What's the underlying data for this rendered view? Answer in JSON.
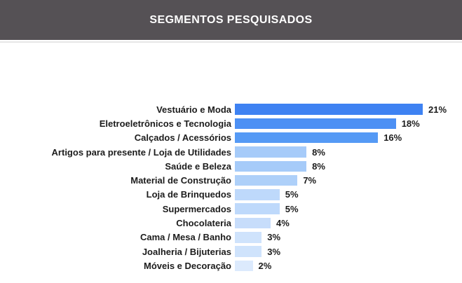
{
  "header": {
    "title": "SEGMENTOS PESQUISADOS",
    "background_color": "#555155",
    "text_color": "#ffffff"
  },
  "chart_data": {
    "type": "bar",
    "orientation": "horizontal",
    "title": "SEGMENTOS PESQUISADOS",
    "xlabel": "",
    "ylabel": "",
    "xlim": [
      0,
      21
    ],
    "grid": false,
    "legend": false,
    "value_label_position": "end-of-bar",
    "value_suffix": "%",
    "categories": [
      "Vestuário e Moda",
      "Eletroeletrônicos e Tecnologia",
      "Calçados / Acessórios",
      "Artigos para presente / Loja de Utilidades",
      "Saúde e Beleza",
      "Material de Construção",
      "Loja de Brinquedos",
      "Supermercados",
      "Chocolateria",
      "Cama / Mesa / Banho",
      "Joalheria / Bijuterias",
      "Móveis e Decoração"
    ],
    "values": [
      21,
      18,
      16,
      8,
      8,
      7,
      5,
      5,
      4,
      3,
      3,
      2
    ],
    "value_labels": [
      "21%",
      "18%",
      "16%",
      "8%",
      "8%",
      "7%",
      "5%",
      "5%",
      "4%",
      "3%",
      "3%",
      "2%"
    ],
    "bar_colors": [
      "#3e82f2",
      "#4c90f4",
      "#559af5",
      "#a6cbf9",
      "#a6cbf9",
      "#aed0f9",
      "#bed9fb",
      "#bed9fb",
      "#c7ddfb",
      "#cfe3fc",
      "#cfe3fc",
      "#dceafd"
    ]
  }
}
